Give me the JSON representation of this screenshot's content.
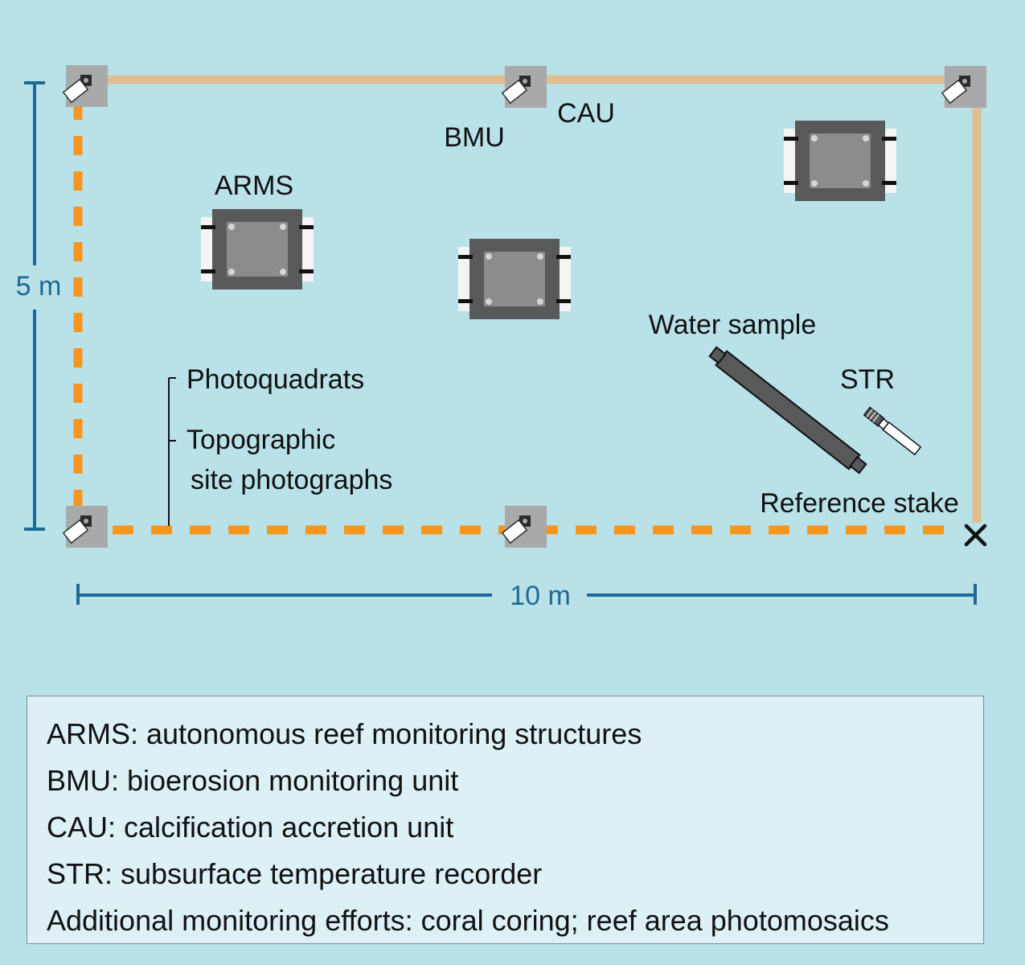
{
  "dimensions": {
    "height": "5 m",
    "width": "10 m"
  },
  "labels": {
    "arms": "ARMS",
    "bmu": "BMU",
    "cau": "CAU",
    "water_sample": "Water sample",
    "str": "STR",
    "photoquadrats": "Photoquadrats",
    "topographic_line1": "Topographic",
    "topographic_line2": "site photographs",
    "reference_stake": "Reference stake"
  },
  "legend": [
    "ARMS: autonomous reef monitoring structures",
    "BMU: bioerosion monitoring unit",
    "CAU: calcification accretion unit",
    "STR: subsurface temperature recorder",
    "Additional monitoring efforts: coral coring; reef area photomosaics"
  ],
  "colors": {
    "background": "#b9e1e8",
    "transect_dashed": "#f7961e",
    "boundary_solid": "#dfbf8f",
    "dimension": "#1e6a94",
    "legend_background": "#dcf0f5"
  }
}
